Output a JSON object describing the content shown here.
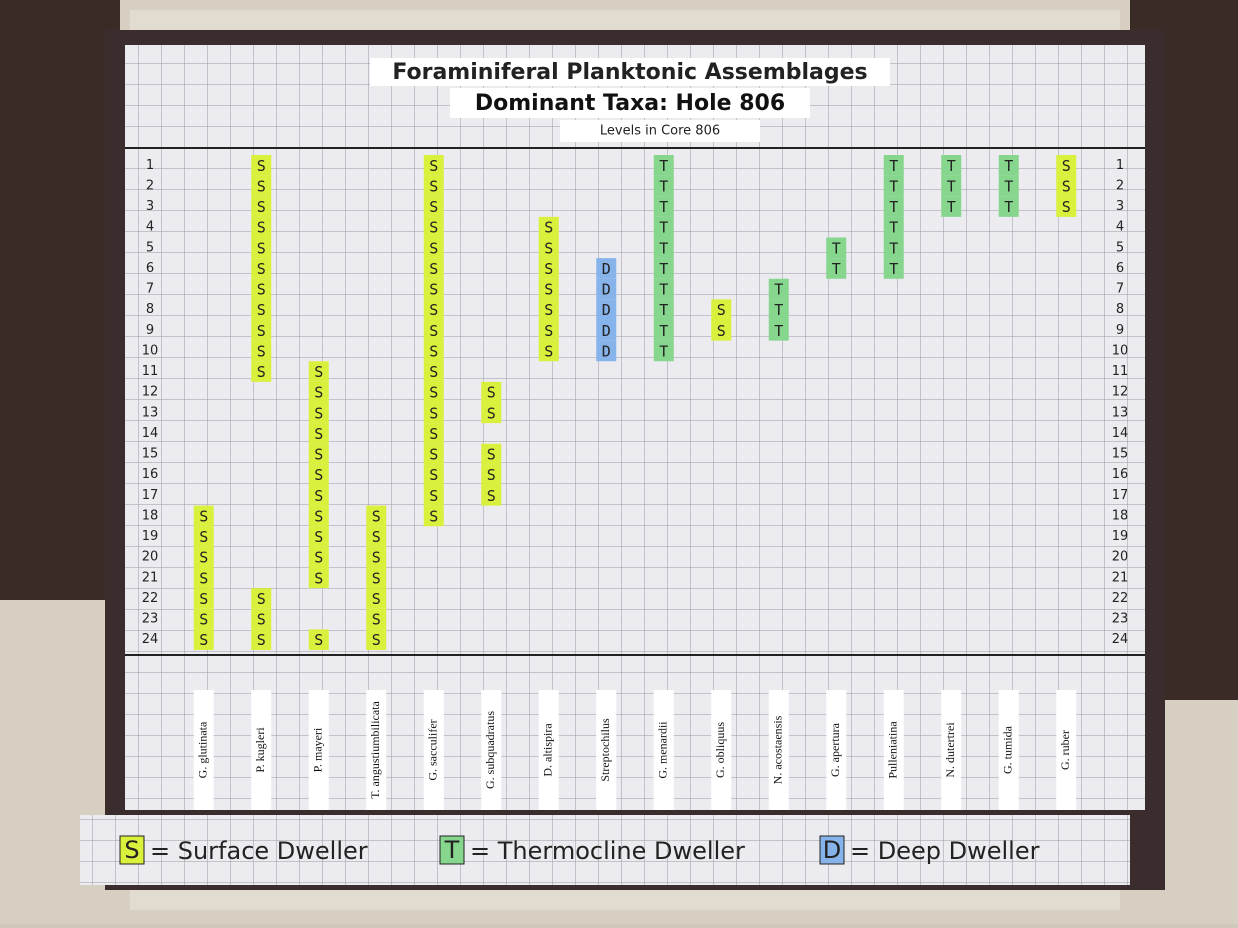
{
  "title": "Foraminiferal Planktonic Assemblages",
  "subtitle": "Dominant Taxa: Hole 806",
  "caption": "Levels in Core 806",
  "levels": [
    1,
    2,
    3,
    4,
    5,
    6,
    7,
    8,
    9,
    10,
    11,
    12,
    13,
    14,
    15,
    16,
    17,
    18,
    19,
    20,
    21,
    22,
    23,
    24
  ],
  "taxa": [
    {
      "name": "G. glutinata",
      "code": "S",
      "levels": [
        18,
        19,
        20,
        21,
        22,
        23,
        24
      ]
    },
    {
      "name": "P. kugleri",
      "code": "S",
      "levels": [
        1,
        2,
        3,
        4,
        5,
        6,
        7,
        8,
        9,
        10,
        11,
        22,
        23,
        24
      ]
    },
    {
      "name": "P. mayeri",
      "code": "S",
      "levels": [
        11,
        12,
        13,
        14,
        15,
        16,
        17,
        18,
        19,
        20,
        21,
        24
      ]
    },
    {
      "name": "T. angustiumbilicata",
      "code": "S",
      "levels": [
        18,
        19,
        20,
        21,
        22,
        23,
        24
      ]
    },
    {
      "name": "G. sacculifer",
      "code": "S",
      "levels": [
        1,
        2,
        3,
        4,
        5,
        6,
        7,
        8,
        9,
        10,
        11,
        12,
        13,
        14,
        15,
        16,
        17,
        18
      ]
    },
    {
      "name": "G. subquadratus",
      "code": "S",
      "levels": [
        12,
        13,
        15,
        16,
        17
      ]
    },
    {
      "name": "D. altispira",
      "code": "S",
      "levels": [
        4,
        5,
        6,
        7,
        8,
        9,
        10
      ]
    },
    {
      "name": "Streptochilus",
      "code": "D",
      "levels": [
        6,
        7,
        8,
        9,
        10
      ]
    },
    {
      "name": "G. menardii",
      "code": "T",
      "levels": [
        1,
        2,
        3,
        4,
        5,
        6,
        7,
        8,
        9,
        10
      ]
    },
    {
      "name": "G. obliquus",
      "code": "S",
      "levels": [
        8,
        9
      ]
    },
    {
      "name": "N. acostaensis",
      "code": "T",
      "levels": [
        7,
        8,
        9
      ]
    },
    {
      "name": "G. apertura",
      "code": "T",
      "levels": [
        5,
        6
      ]
    },
    {
      "name": "Pulleniatina",
      "code": "T",
      "levels": [
        1,
        2,
        3,
        4,
        5,
        6
      ]
    },
    {
      "name": "N. dutertrei",
      "code": "T",
      "levels": [
        1,
        2,
        3
      ]
    },
    {
      "name": "G. tumida",
      "code": "T",
      "levels": [
        1,
        2,
        3
      ]
    },
    {
      "name": "G. ruber",
      "code": "S",
      "levels": [
        1,
        2,
        3
      ]
    }
  ],
  "legend": [
    {
      "code": "S",
      "label": "= Surface Dweller"
    },
    {
      "code": "T",
      "label": "= Thermocline Dweller"
    },
    {
      "code": "D",
      "label": "= Deep Dweller"
    }
  ]
}
